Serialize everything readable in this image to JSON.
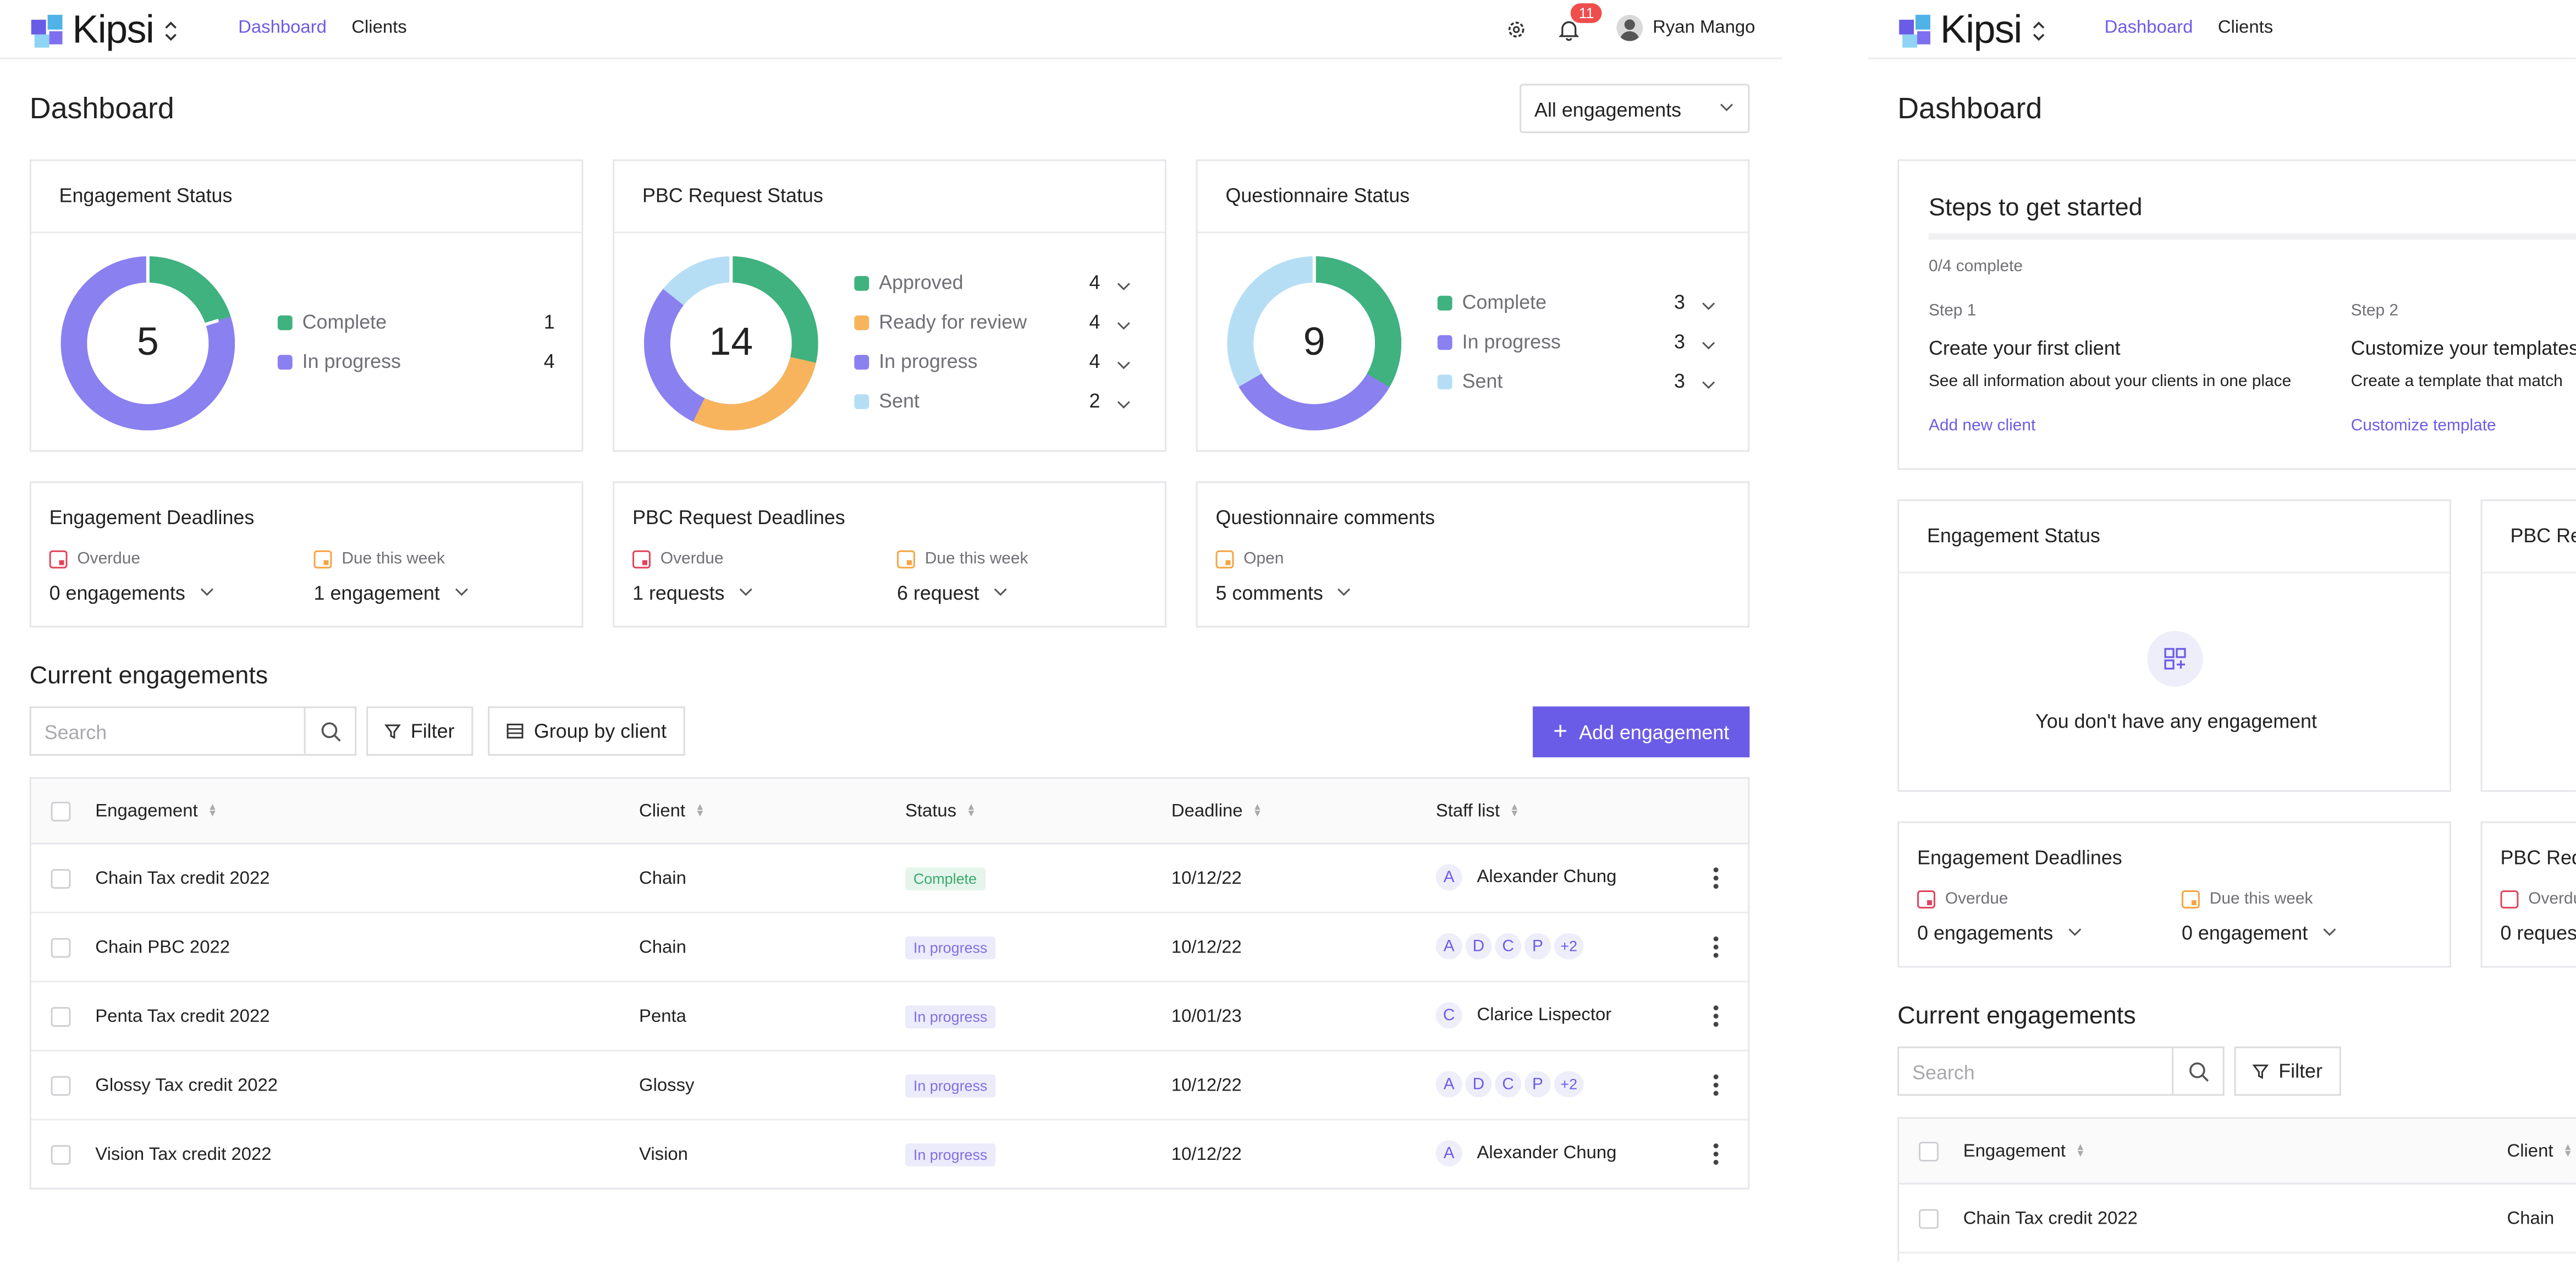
{
  "app": {
    "name": "Kipsi"
  },
  "nav": {
    "dashboard": "Dashboard",
    "clients": "Clients"
  },
  "header": {
    "notifications": "11",
    "user_name": "Ryan Mango"
  },
  "page": {
    "title": "Dashboard",
    "filter_select": "All engagements"
  },
  "engagement_status": {
    "title": "Engagement Status",
    "total": "5",
    "items": [
      {
        "label": "Complete",
        "value": "1",
        "color": "#3fb27f"
      },
      {
        "label": "In progress",
        "value": "4",
        "color": "#8b80f0"
      }
    ]
  },
  "pbc_status": {
    "title": "PBC Request Status",
    "total": "14",
    "items": [
      {
        "label": "Approved",
        "value": "4",
        "color": "#3fb27f"
      },
      {
        "label": "Ready for review",
        "value": "4",
        "color": "#f8b45c"
      },
      {
        "label": "In progress",
        "value": "4",
        "color": "#8b80f0"
      },
      {
        "label": "Sent",
        "value": "2",
        "color": "#b5def5"
      }
    ]
  },
  "questionnaire_status": {
    "title": "Questionnaire Status",
    "total": "9",
    "items": [
      {
        "label": "Complete",
        "value": "3",
        "color": "#3fb27f"
      },
      {
        "label": "In progress",
        "value": "3",
        "color": "#8b80f0"
      },
      {
        "label": "Sent",
        "value": "3",
        "color": "#b5def5"
      }
    ]
  },
  "engagement_deadlines": {
    "title": "Engagement Deadlines",
    "overdue_label": "Overdue",
    "overdue_value": "0 engagements",
    "week_label": "Due this week",
    "week_value": "1 engagement"
  },
  "pbc_deadlines": {
    "title": "PBC Request Deadlines",
    "overdue_label": "Overdue",
    "overdue_value": "1 requests",
    "week_label": "Due this week",
    "week_value": "6 request"
  },
  "questionnaire_comments": {
    "title": "Questionnaire comments",
    "open_label": "Open",
    "open_value": "5 comments"
  },
  "current": {
    "title": "Current engagements",
    "search_placeholder": "Search",
    "filter": "Filter",
    "group": "Group by client",
    "add": "Add engagement",
    "columns": [
      "Engagement",
      "Client",
      "Status",
      "Deadline",
      "Staff list"
    ],
    "rows": [
      {
        "engagement": "Chain Tax credit 2022",
        "client": "Chain",
        "status": "Complete",
        "deadline": "10/12/22",
        "staff": [
          "A"
        ],
        "staff_name": "Alexander Chung"
      },
      {
        "engagement": "Chain PBC 2022",
        "client": "Chain",
        "status": "In progress",
        "deadline": "10/12/22",
        "staff": [
          "A",
          "D",
          "C",
          "P",
          "+2"
        ],
        "staff_name": ""
      },
      {
        "engagement": "Penta Tax credit 2022",
        "client": "Penta",
        "status": "In progress",
        "deadline": "10/01/23",
        "staff": [
          "C"
        ],
        "staff_name": "Clarice Lispector"
      },
      {
        "engagement": "Glossy Tax credit 2022",
        "client": "Glossy",
        "status": "In progress",
        "deadline": "10/12/22",
        "staff": [
          "A",
          "D",
          "C",
          "P",
          "+2"
        ],
        "staff_name": ""
      },
      {
        "engagement": "Vision Tax credit 2022",
        "client": "Vision",
        "status": "In progress",
        "deadline": "10/12/22",
        "staff": [
          "A"
        ],
        "staff_name": "Alexander Chung"
      }
    ]
  },
  "onboarding": {
    "title": "Steps to get started",
    "progress": "0/4 complete",
    "steps": [
      {
        "label": "Step 1",
        "title": "Create your first client",
        "desc": "See all information about your clients in one place",
        "link": "Add new client"
      },
      {
        "label": "Step 2",
        "title": "Customize your templates",
        "desc": "Create a template that match",
        "link": "Customize template"
      }
    ]
  },
  "empty": {
    "engagement_status_title": "Engagement Status",
    "pbc_title_partial": "PBC Re",
    "message": "You don't have any engagement",
    "deadlines_title": "Engagement Deadlines",
    "overdue_label": "Overdue",
    "overdue_value": "0 engagements",
    "week_label": "Due this week",
    "week_value": "0 engagement",
    "pbc_deadlines_partial": "PBC Req",
    "pbc_overdue_partial": "Overdu",
    "pbc_value_partial": "0 reques",
    "current_title": "Current engagements",
    "search_placeholder": "Search",
    "filter": "Filter",
    "col_engagement": "Engagement",
    "col_client": "Client",
    "row_engagement": "Chain Tax credit 2022",
    "row_client": "Chain"
  }
}
